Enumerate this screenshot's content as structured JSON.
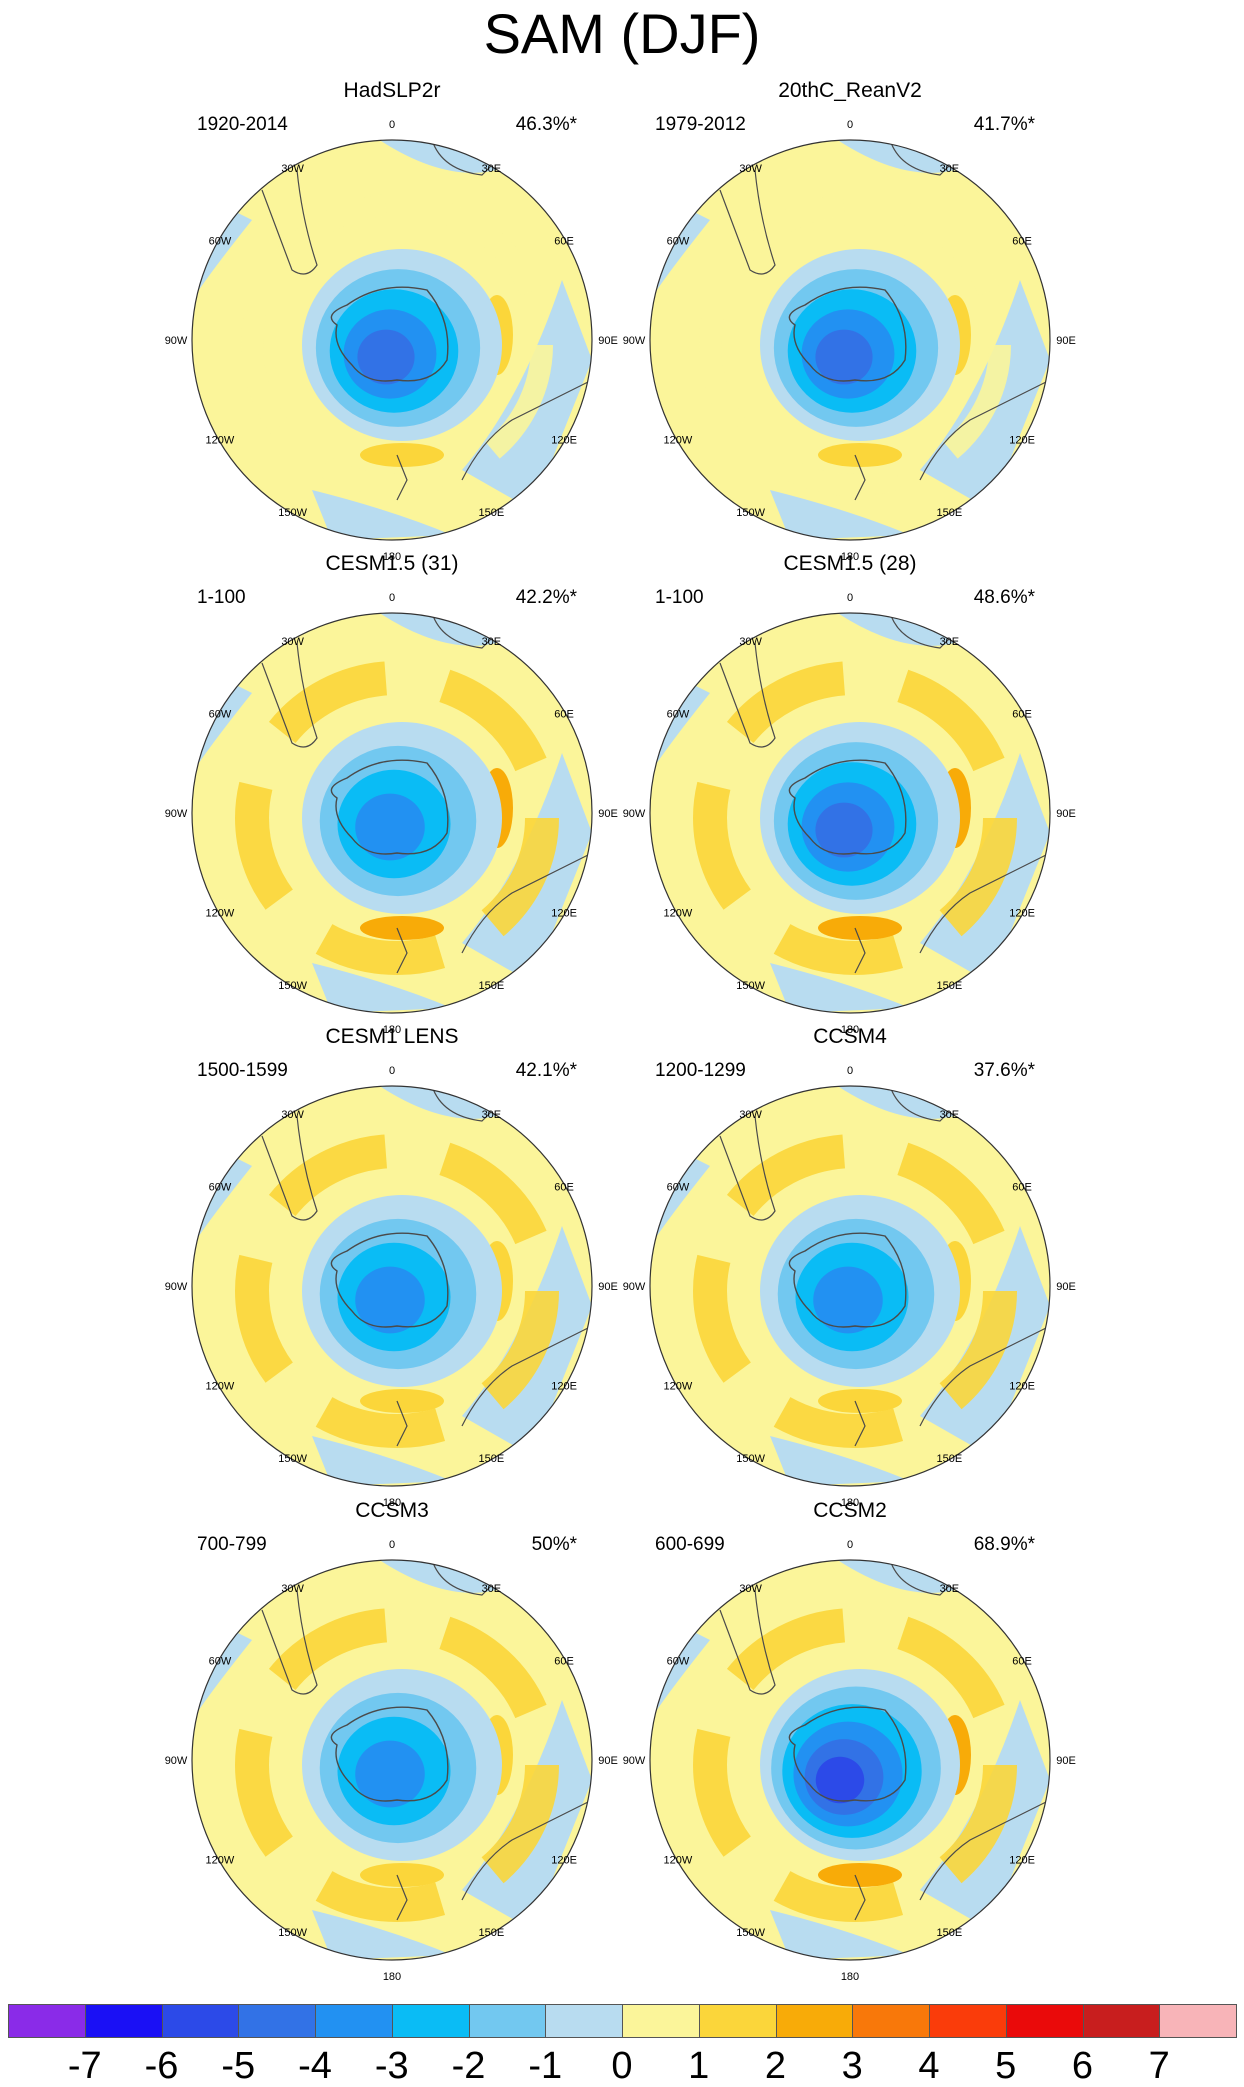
{
  "title": "SAM (DJF)",
  "colors": {
    "ocean": "#b8dcf0",
    "coast": "#4a4a4a",
    "rim": "#333333"
  },
  "colorbar": {
    "levels": [
      "-7",
      "-6",
      "-5",
      "-4",
      "-3",
      "-2",
      "-1",
      "0",
      "1",
      "2",
      "3",
      "4",
      "5",
      "6",
      "7"
    ],
    "colors": [
      "#8a2be8",
      "#1a10f5",
      "#2c4ae8",
      "#3272e6",
      "#2291f2",
      "#0abcf5",
      "#72c8f0",
      "#b8dcf0",
      "#fbf59a",
      "#fbd63a",
      "#f8ab08",
      "#f8780a",
      "#fa3c0a",
      "#ea0a0a",
      "#c81e1e",
      "#f8b4b8"
    ]
  },
  "panel_labels": {
    "lon": [
      "0",
      "30E",
      "60E",
      "90E",
      "120E",
      "150E",
      "180",
      "150W",
      "120W",
      "90W",
      "60W",
      "30W"
    ]
  },
  "chart_data": [
    {
      "type": "heatmap",
      "title": "HadSLP2r",
      "period": "1920-2014",
      "variance": "46.3%*",
      "center_value": -5,
      "jet_value": 1,
      "jet_max": 2
    },
    {
      "type": "heatmap",
      "title": "20thC_ReanV2",
      "period": "1979-2012",
      "variance": "41.7%*",
      "center_value": -5,
      "jet_value": 1,
      "jet_max": 2
    },
    {
      "type": "heatmap",
      "title": "CESM1.5 (31)",
      "period": "1-100",
      "variance": "42.2%*",
      "center_value": -4,
      "jet_value": 2,
      "jet_max": 3
    },
    {
      "type": "heatmap",
      "title": "CESM1.5 (28)",
      "period": "1-100",
      "variance": "48.6%*",
      "center_value": -5,
      "jet_value": 2,
      "jet_max": 3
    },
    {
      "type": "heatmap",
      "title": "CESM1 LENS",
      "period": "1500-1599",
      "variance": "42.1%*",
      "center_value": -4,
      "jet_value": 2,
      "jet_max": 2
    },
    {
      "type": "heatmap",
      "title": "CCSM4",
      "period": "1200-1299",
      "variance": "37.6%*",
      "center_value": -4,
      "jet_value": 2,
      "jet_max": 2
    },
    {
      "type": "heatmap",
      "title": "CCSM3",
      "period": "700-799",
      "variance": "50%*",
      "center_value": -4,
      "jet_value": 2,
      "jet_max": 2
    },
    {
      "type": "heatmap",
      "title": "CCSM2",
      "period": "600-699",
      "variance": "68.9%*",
      "center_value": -6,
      "jet_value": 2,
      "jet_max": 3
    }
  ]
}
